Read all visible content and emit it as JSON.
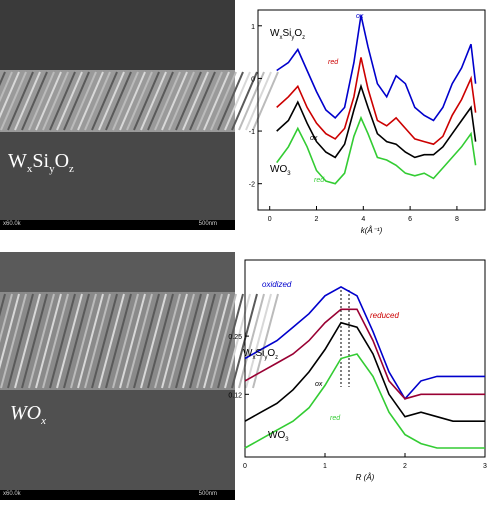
{
  "sem_images": [
    {
      "label_main": "W",
      "label_parts": [
        [
          "x",
          ""
        ],
        [
          "Si",
          ""
        ],
        [
          "y",
          ""
        ],
        [
          "O",
          ""
        ],
        [
          "z",
          ""
        ]
      ],
      "label_text": "WxSiyOz",
      "scale_left": "x60.0k",
      "scale_right": "500nm"
    },
    {
      "label_text": "WOx",
      "scale_left": "x60.0k",
      "scale_right": "500nm"
    }
  ],
  "chart_data": [
    {
      "type": "line",
      "xlabel": "k(Å⁻¹)",
      "xlim": [
        -0.5,
        9.2
      ],
      "ylim": [
        -2.5,
        1.3
      ],
      "xticks": [
        0,
        2,
        4,
        6,
        8
      ],
      "yticks": [
        1,
        0,
        -1,
        -2
      ],
      "annotations": [
        {
          "text": "WxSiyOz",
          "sample": "WxSiyOz"
        },
        {
          "text": "ox",
          "color": "#0000cc"
        },
        {
          "text": "red",
          "color": "#cc0000"
        },
        {
          "text": "ox",
          "color": "#000000"
        },
        {
          "text": "WO3",
          "sample": "WO3"
        },
        {
          "text": "red",
          "color": "#33cc33"
        }
      ],
      "series": [
        {
          "name": "ox",
          "color": "#0000cc",
          "x": [
            0.3,
            0.8,
            1.2,
            1.6,
            2.0,
            2.4,
            2.8,
            3.2,
            3.6,
            3.9,
            4.2,
            4.6,
            5.0,
            5.4,
            5.8,
            6.2,
            6.6,
            7.0,
            7.4,
            7.8,
            8.2,
            8.6,
            8.8
          ],
          "y": [
            0.15,
            0.3,
            0.55,
            0.15,
            -0.25,
            -0.6,
            -0.75,
            -0.55,
            0.3,
            1.2,
            0.6,
            -0.1,
            -0.35,
            0.05,
            -0.1,
            -0.55,
            -0.7,
            -0.8,
            -0.55,
            -0.1,
            0.2,
            0.65,
            -0.1
          ]
        },
        {
          "name": "red",
          "color": "#cc0000",
          "x": [
            0.3,
            0.8,
            1.2,
            1.6,
            2.0,
            2.4,
            2.8,
            3.2,
            3.6,
            3.9,
            4.2,
            4.6,
            5.0,
            5.4,
            5.8,
            6.2,
            6.6,
            7.0,
            7.4,
            7.8,
            8.2,
            8.6,
            8.8
          ],
          "y": [
            -0.55,
            -0.35,
            -0.15,
            -0.55,
            -0.85,
            -1.05,
            -1.15,
            -0.95,
            -0.35,
            0.4,
            -0.2,
            -0.8,
            -0.9,
            -0.75,
            -0.95,
            -1.15,
            -1.2,
            -1.25,
            -1.1,
            -0.7,
            -0.4,
            0.0,
            -0.65
          ]
        },
        {
          "name": "ox",
          "color": "#000000",
          "x": [
            0.3,
            0.8,
            1.2,
            1.6,
            2.0,
            2.4,
            2.8,
            3.2,
            3.6,
            3.9,
            4.2,
            4.6,
            5.0,
            5.4,
            5.8,
            6.2,
            6.6,
            7.0,
            7.4,
            7.8,
            8.2,
            8.6,
            8.8
          ],
          "y": [
            -1.0,
            -0.8,
            -0.45,
            -0.85,
            -1.2,
            -1.4,
            -1.5,
            -1.25,
            -0.6,
            -0.15,
            -0.55,
            -1.05,
            -1.2,
            -1.25,
            -1.4,
            -1.5,
            -1.45,
            -1.45,
            -1.3,
            -1.05,
            -0.8,
            -0.55,
            -1.2
          ]
        },
        {
          "name": "red",
          "color": "#33cc33",
          "x": [
            0.3,
            0.8,
            1.2,
            1.6,
            2.0,
            2.4,
            2.8,
            3.2,
            3.6,
            3.9,
            4.2,
            4.6,
            5.0,
            5.4,
            5.8,
            6.2,
            6.6,
            7.0,
            7.4,
            7.8,
            8.2,
            8.6,
            8.8
          ],
          "y": [
            -1.6,
            -1.3,
            -0.95,
            -1.3,
            -1.75,
            -1.95,
            -2.0,
            -1.8,
            -1.1,
            -0.75,
            -1.05,
            -1.5,
            -1.55,
            -1.65,
            -1.8,
            -1.85,
            -1.8,
            -1.9,
            -1.7,
            -1.5,
            -1.3,
            -1.05,
            -1.65
          ]
        }
      ]
    },
    {
      "type": "line",
      "xlabel": "R (Å)",
      "xlim": [
        0,
        3
      ],
      "ylim": [
        -0.02,
        0.42
      ],
      "xticks": [
        0,
        1,
        2,
        3
      ],
      "yticks": [
        0.25,
        0.12
      ],
      "ytick_labels": [
        "0.25",
        "0.12"
      ],
      "annotations": [
        {
          "text": "oxidized",
          "color": "#0000cc"
        },
        {
          "text": "reduced",
          "color": "#cc0000"
        },
        {
          "text": "WxSiyOz",
          "sample": "WxSiyOz"
        },
        {
          "text": "ox",
          "color": "#000000"
        },
        {
          "text": "WO3",
          "sample": "WO3"
        },
        {
          "text": "red",
          "color": "#33cc33"
        }
      ],
      "vlines": [
        1.2,
        1.3
      ],
      "series": [
        {
          "name": "oxidized",
          "color": "#0000cc",
          "x": [
            0,
            0.2,
            0.4,
            0.6,
            0.8,
            1.0,
            1.2,
            1.4,
            1.6,
            1.8,
            2.0,
            2.2,
            2.4,
            2.6,
            2.8,
            3.0
          ],
          "y": [
            0.2,
            0.22,
            0.24,
            0.27,
            0.3,
            0.34,
            0.36,
            0.34,
            0.26,
            0.17,
            0.11,
            0.15,
            0.16,
            0.16,
            0.16,
            0.16
          ]
        },
        {
          "name": "reduced",
          "color": "#990033",
          "x": [
            0,
            0.2,
            0.4,
            0.6,
            0.8,
            1.0,
            1.2,
            1.4,
            1.6,
            1.8,
            2.0,
            2.2,
            2.4,
            2.6,
            2.8,
            3.0
          ],
          "y": [
            0.15,
            0.17,
            0.19,
            0.21,
            0.24,
            0.28,
            0.31,
            0.31,
            0.24,
            0.15,
            0.11,
            0.12,
            0.12,
            0.12,
            0.12,
            0.12
          ]
        },
        {
          "name": "ox",
          "color": "#000000",
          "x": [
            0,
            0.2,
            0.4,
            0.6,
            0.8,
            1.0,
            1.2,
            1.4,
            1.6,
            1.8,
            2.0,
            2.2,
            2.4,
            2.6,
            2.8,
            3.0
          ],
          "y": [
            0.06,
            0.08,
            0.1,
            0.13,
            0.17,
            0.22,
            0.28,
            0.27,
            0.21,
            0.12,
            0.07,
            0.08,
            0.07,
            0.06,
            0.06,
            0.06
          ]
        },
        {
          "name": "red",
          "color": "#33cc33",
          "x": [
            0,
            0.2,
            0.4,
            0.6,
            0.8,
            1.0,
            1.2,
            1.4,
            1.6,
            1.8,
            2.0,
            2.2,
            2.4,
            2.6,
            2.8,
            3.0
          ],
          "y": [
            0.0,
            0.02,
            0.04,
            0.06,
            0.09,
            0.14,
            0.2,
            0.21,
            0.16,
            0.08,
            0.03,
            0.01,
            0.0,
            0.0,
            0.0,
            0.0
          ]
        }
      ]
    }
  ]
}
